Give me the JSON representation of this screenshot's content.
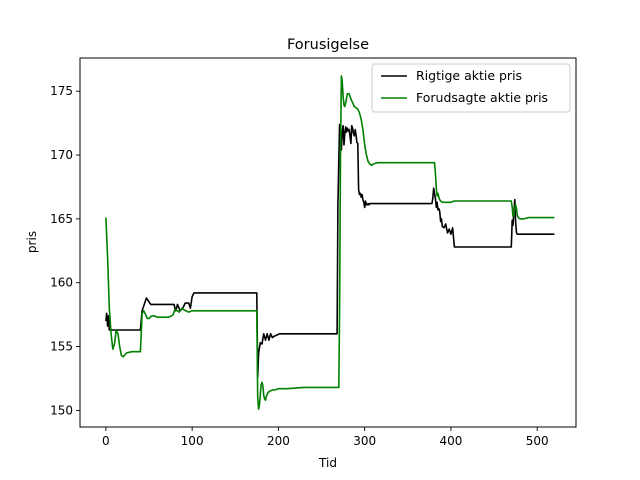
{
  "chart_data": {
    "type": "line",
    "title": "Forusigelse",
    "xlabel": "Tid",
    "ylabel": "pris",
    "xlim": [
      -30,
      545
    ],
    "ylim": [
      148.7,
      177.6
    ],
    "xticks": [
      0,
      100,
      200,
      300,
      400,
      500
    ],
    "yticks": [
      150,
      155,
      160,
      165,
      170,
      175
    ],
    "grid": false,
    "legend_position": "top-right",
    "series": [
      {
        "name": "Rigtige aktie pris",
        "color": "#000000",
        "x": [
          0,
          1,
          2,
          3,
          4,
          5,
          40,
          42,
          45,
          47,
          49,
          52,
          66,
          79,
          81,
          83,
          86,
          89,
          92,
          96,
          98,
          100,
          102,
          175,
          176,
          177,
          179,
          181,
          183,
          185,
          187,
          189,
          191,
          193,
          195,
          198,
          201,
          268,
          269,
          270,
          271,
          272,
          273,
          274,
          275,
          276,
          277,
          278,
          279,
          280,
          281,
          282,
          283,
          284,
          285,
          286,
          287,
          288,
          289,
          290,
          291,
          292,
          293,
          294,
          295,
          296,
          297,
          298,
          299,
          300,
          301,
          302,
          303,
          304,
          305,
          306,
          307,
          309,
          378,
          379,
          380,
          381,
          382,
          383,
          384,
          385,
          386,
          387,
          388,
          389,
          390,
          392,
          394,
          396,
          398,
          400,
          402,
          404,
          406,
          408,
          470,
          471,
          472,
          473,
          474,
          475,
          476,
          477,
          478,
          480,
          520
        ],
        "y": [
          157.0,
          157.6,
          156.6,
          157.4,
          156.3,
          156.3,
          156.3,
          157.8,
          158.4,
          158.8,
          158.6,
          158.3,
          158.3,
          158.3,
          157.8,
          158.3,
          157.8,
          158.0,
          158.4,
          158.4,
          158.0,
          158.9,
          159.2,
          159.2,
          152.6,
          154.5,
          155.3,
          155.2,
          156.0,
          155.5,
          156.0,
          155.5,
          156.0,
          155.7,
          155.8,
          155.9,
          156.0,
          156.0,
          166.0,
          169.5,
          172.4,
          171.0,
          170.4,
          171.8,
          172.3,
          170.8,
          171.7,
          172.2,
          171.8,
          172.1,
          171.9,
          172.0,
          171.5,
          170.9,
          172.3,
          172.1,
          171.7,
          171.5,
          172.0,
          171.6,
          171.0,
          170.9,
          167.3,
          166.9,
          167.0,
          166.7,
          166.9,
          166.5,
          166.3,
          165.9,
          166.4,
          166.1,
          166.1,
          166.2,
          166.1,
          166.2,
          166.2,
          166.2,
          166.2,
          166.6,
          167.4,
          167.0,
          166.6,
          165.9,
          166.3,
          165.7,
          165.8,
          165.6,
          164.8,
          165.0,
          164.4,
          164.3,
          164.6,
          163.9,
          164.2,
          163.8,
          164.3,
          162.8,
          162.8,
          162.8,
          162.8,
          164.9,
          164.5,
          165.5,
          166.5,
          164.8,
          163.9,
          163.8,
          163.8,
          163.8,
          163.8
        ]
      },
      {
        "name": "Forudsagte aktie pris",
        "color": "#008000",
        "x": [
          0,
          2,
          4,
          6,
          8,
          10,
          12,
          14,
          16,
          18,
          20,
          24,
          30,
          35,
          40,
          41,
          42,
          44,
          46,
          48,
          50,
          53,
          56,
          60,
          66,
          70,
          73,
          76,
          78,
          80,
          83,
          85,
          88,
          90,
          93,
          96,
          100,
          140,
          175,
          176,
          177,
          178,
          179,
          180,
          181,
          182,
          183,
          184,
          185,
          186,
          188,
          190,
          193,
          196,
          200,
          210,
          230,
          270,
          271,
          272,
          273,
          274,
          275,
          276,
          277,
          278,
          280,
          282,
          283,
          284,
          286,
          288,
          290,
          292,
          294,
          296,
          298,
          300,
          302,
          304,
          306,
          308,
          310,
          315,
          320,
          330,
          340,
          360,
          381,
          382,
          383,
          384,
          385,
          386,
          387,
          388,
          390,
          393,
          396,
          400,
          404,
          408,
          420,
          440,
          460,
          470,
          471,
          472,
          473,
          474,
          475,
          476,
          477,
          478,
          480,
          484,
          490,
          520
        ],
        "y": [
          165.1,
          162.0,
          158.0,
          156.0,
          154.8,
          155.2,
          156.3,
          156.0,
          155.0,
          154.3,
          154.2,
          154.5,
          154.6,
          154.6,
          154.6,
          156.0,
          157.6,
          157.8,
          157.5,
          157.2,
          157.2,
          157.4,
          157.4,
          157.3,
          157.3,
          157.3,
          157.3,
          157.4,
          157.5,
          157.9,
          157.8,
          157.7,
          158.0,
          157.9,
          157.8,
          157.7,
          157.8,
          157.8,
          157.8,
          151.0,
          150.1,
          150.4,
          151.2,
          152.0,
          152.2,
          151.9,
          151.2,
          150.9,
          150.8,
          151.1,
          151.4,
          151.5,
          151.6,
          151.6,
          151.7,
          151.7,
          151.8,
          151.8,
          158.0,
          170.0,
          176.2,
          175.8,
          174.6,
          173.9,
          173.8,
          174.1,
          174.8,
          174.8,
          174.6,
          174.4,
          174.1,
          173.8,
          173.7,
          173.6,
          173.3,
          172.8,
          172.0,
          170.8,
          170.0,
          169.5,
          169.3,
          169.2,
          169.3,
          169.4,
          169.4,
          169.4,
          169.4,
          169.4,
          169.4,
          168.6,
          167.4,
          166.8,
          167.0,
          166.7,
          166.5,
          166.4,
          166.3,
          166.3,
          166.3,
          166.3,
          166.4,
          166.4,
          166.4,
          166.4,
          166.4,
          166.4,
          165.9,
          165.2,
          165.3,
          165.8,
          166.1,
          165.8,
          165.3,
          165.1,
          165.0,
          165.0,
          165.1,
          165.1
        ]
      }
    ]
  }
}
